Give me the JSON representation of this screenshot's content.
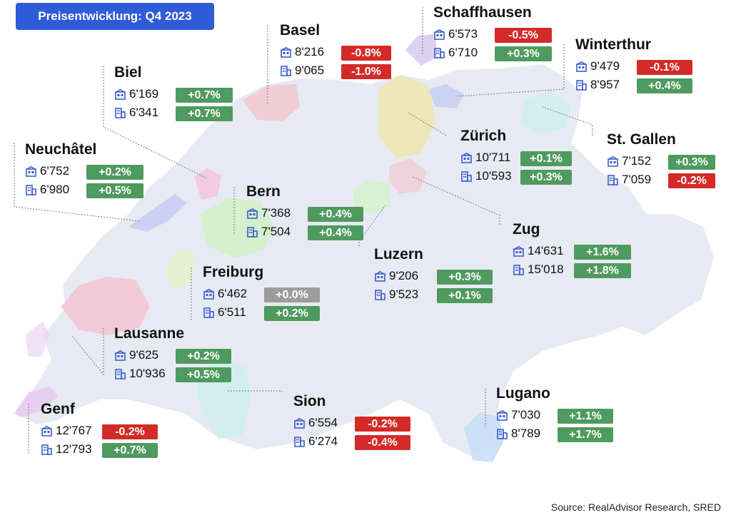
{
  "title": "Preisentwicklung: Q4 2023",
  "source": "Source: RealAdvisor Research, SRED",
  "colors": {
    "title_bg": "#2f5bd9",
    "positive": "#4f9a5e",
    "negative": "#d42a28",
    "neutral": "#9c9c9c",
    "icon": "#3a5fcf",
    "country_fill": "#e8eaf3"
  },
  "icons": {
    "apartment": "apartment-icon",
    "house": "house-icon"
  },
  "cities": [
    {
      "name": "Basel",
      "apartment": "8'216",
      "apartment_change": "-0.8%",
      "house": "9'065",
      "house_change": "-1.0%"
    },
    {
      "name": "Schaffhausen",
      "apartment": "6'573",
      "apartment_change": "-0.5%",
      "house": "6'710",
      "house_change": "+0.3%"
    },
    {
      "name": "Winterthur",
      "apartment": "9'479",
      "apartment_change": "-0.1%",
      "house": "8'957",
      "house_change": "+0.4%"
    },
    {
      "name": "Biel",
      "apartment": "6'169",
      "apartment_change": "+0.7%",
      "house": "6'341",
      "house_change": "+0.7%"
    },
    {
      "name": "Neuchâtel",
      "apartment": "6'752",
      "apartment_change": "+0.2%",
      "house": "6'980",
      "house_change": "+0.5%"
    },
    {
      "name": "Zürich",
      "apartment": "10'711",
      "apartment_change": "+0.1%",
      "house": "10'593",
      "house_change": "+0.3%"
    },
    {
      "name": "St. Gallen",
      "apartment": "7'152",
      "apartment_change": "+0.3%",
      "house": "7'059",
      "house_change": "-0.2%"
    },
    {
      "name": "Bern",
      "apartment": "7'368",
      "apartment_change": "+0.4%",
      "house": "7'504",
      "house_change": "+0.4%"
    },
    {
      "name": "Zug",
      "apartment": "14'631",
      "apartment_change": "+1.6%",
      "house": "15'018",
      "house_change": "+1.8%"
    },
    {
      "name": "Luzern",
      "apartment": "9'206",
      "apartment_change": "+0.3%",
      "house": "9'523",
      "house_change": "+0.1%"
    },
    {
      "name": "Freiburg",
      "apartment": "6'462",
      "apartment_change": "+0.0%",
      "house": "6'511",
      "house_change": "+0.2%"
    },
    {
      "name": "Lausanne",
      "apartment": "9'625",
      "apartment_change": "+0.2%",
      "house": "10'936",
      "house_change": "+0.5%"
    },
    {
      "name": "Sion",
      "apartment": "6'554",
      "apartment_change": "-0.2%",
      "house": "6'274",
      "house_change": "-0.4%"
    },
    {
      "name": "Lugano",
      "apartment": "7'030",
      "apartment_change": "+1.1%",
      "house": "8'789",
      "house_change": "+1.7%"
    },
    {
      "name": "Genf",
      "apartment": "12'767",
      "apartment_change": "-0.2%",
      "house": "12'793",
      "house_change": "+0.7%"
    }
  ]
}
